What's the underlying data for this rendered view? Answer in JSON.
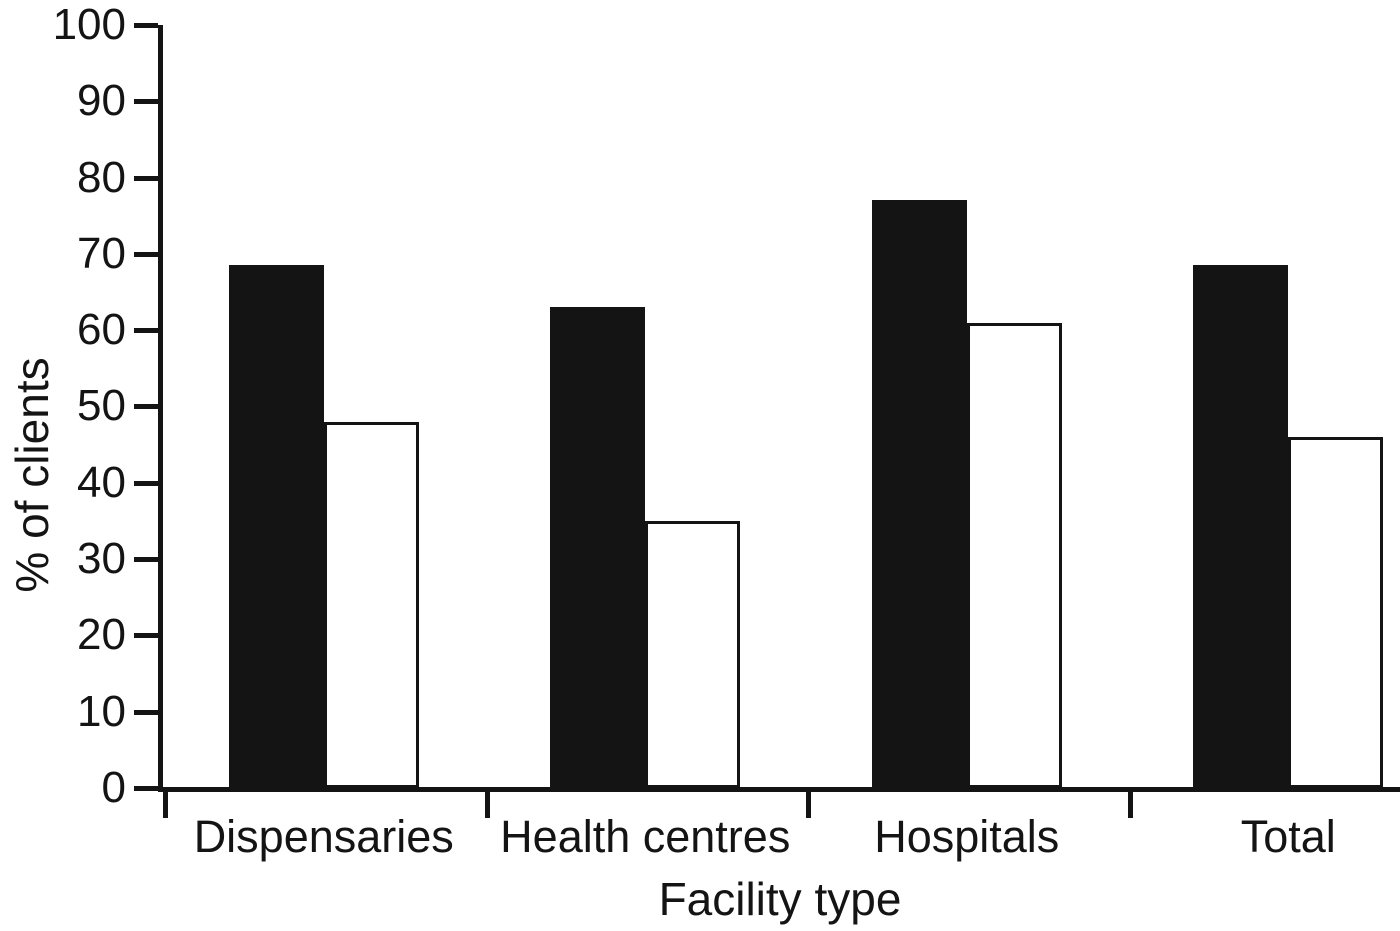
{
  "chart_data": {
    "type": "bar",
    "title": "",
    "xlabel": "Facility type",
    "ylabel": "% of clients",
    "categories": [
      "Dispensaries",
      "Health centres",
      "Hospitals",
      "Total"
    ],
    "series": [
      {
        "name": "black-filled",
        "style": "filled",
        "color": "#141414",
        "values": [
          68.5,
          63,
          77,
          68.5
        ]
      },
      {
        "name": "white-open",
        "style": "open",
        "color": "#ffffff",
        "values": [
          48,
          35,
          61,
          46
        ]
      }
    ],
    "ylim": [
      0,
      100
    ],
    "yticks": [
      0,
      10,
      20,
      30,
      40,
      50,
      60,
      70,
      80,
      90,
      100
    ],
    "grid": false,
    "legend": "none",
    "colors": {
      "axis": "#141414",
      "bar_fill": "#141414",
      "bar_outline": "#141414",
      "background": "#ffffff"
    }
  }
}
